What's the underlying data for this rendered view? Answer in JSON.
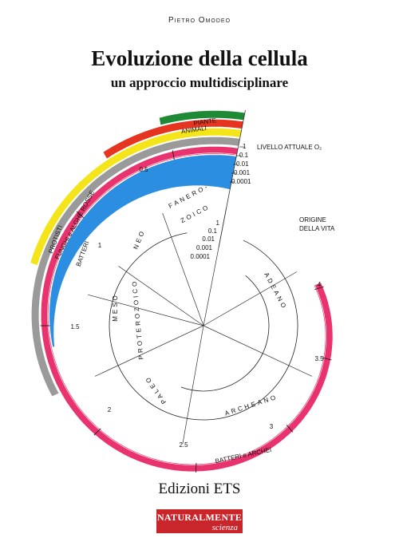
{
  "author": "Pietro Omodeo",
  "title": "Evoluzione della cellula",
  "subtitle": "un approccio multidisciplinare",
  "diagram": {
    "labels": [
      "PIANTE",
      "ANIMALI",
      "LIVELLO ATTUALE O₂",
      "ORIGINE",
      "DELLA VITA",
      "FANERO-",
      "ZOICO",
      "NEO",
      "MESO",
      "PROTEROZOICO",
      "PALEO",
      "ADEANO",
      "ARCHEANO",
      "BATTERI e ARCHEI",
      "PROTISTI",
      "FUNGHI e ALGHE ROSSE",
      "BATTERI"
    ],
    "o2_scale_outer": [
      "1",
      "0.1",
      "0.01",
      "0.001",
      "0.0001"
    ],
    "o2_scale_inner": [
      "1",
      "0.1",
      "0.01",
      "0.001",
      "0.0001"
    ],
    "time_labels": [
      "0.5",
      "1",
      "1.5",
      "2",
      "2.5",
      "3",
      "3.5",
      "4"
    ]
  },
  "publisher": "Edizioni ETS",
  "series": {
    "name": "NATURALMENTE",
    "subtitle": "scienza"
  }
}
